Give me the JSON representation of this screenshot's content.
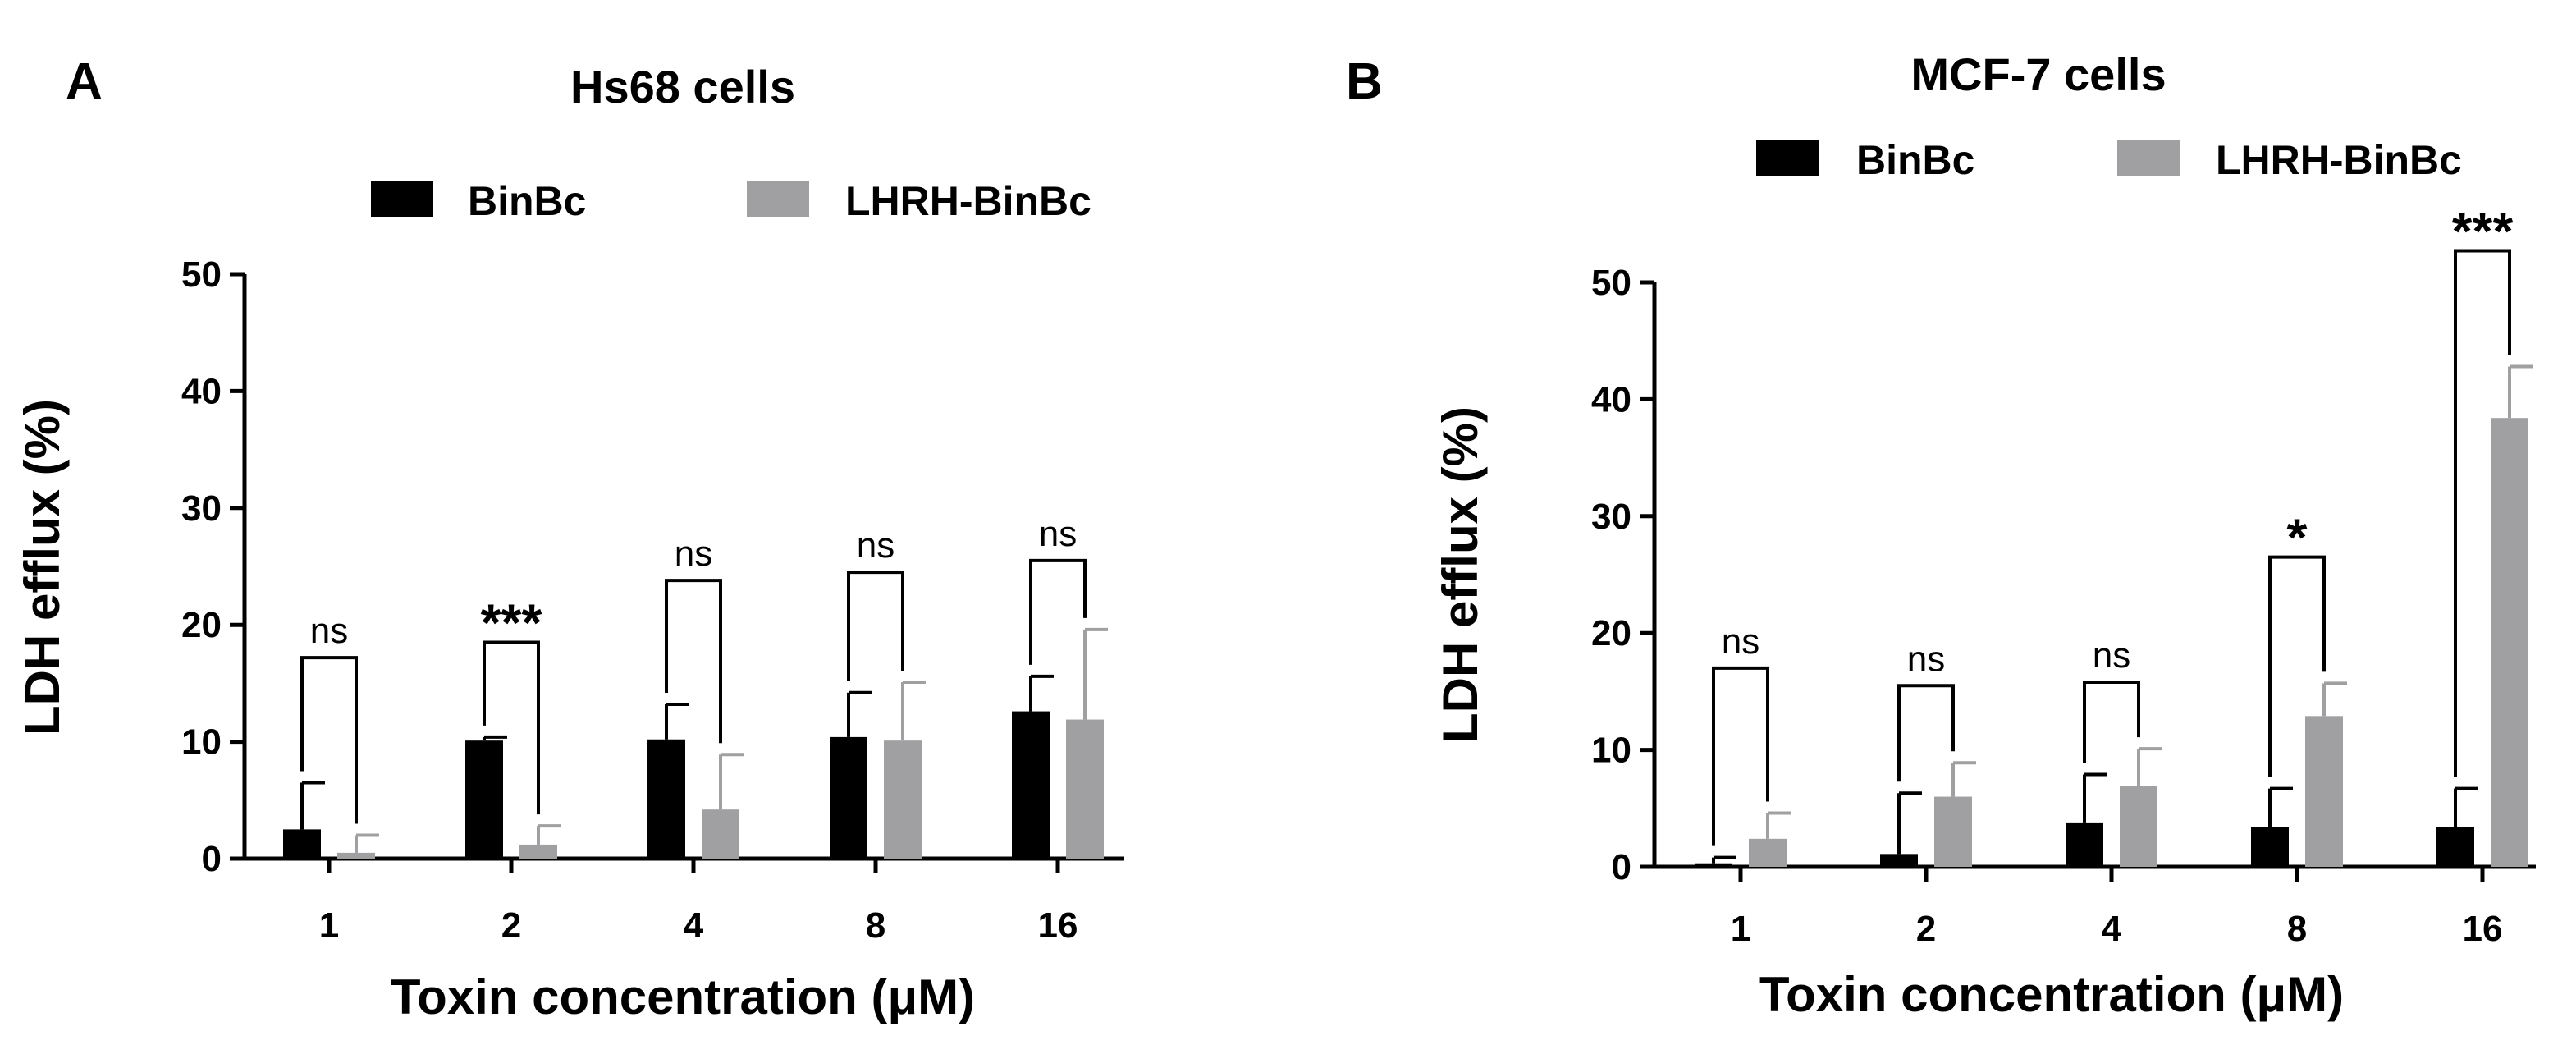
{
  "colors": {
    "binbc": "#000000",
    "lhrh": "#a0a0a2",
    "axis": "#000000",
    "background": "#ffffff"
  },
  "chart_data": [
    {
      "type": "bar",
      "panel": "A",
      "title": "Hs68 cells",
      "xlabel": "Toxin concentration (μM)",
      "ylabel": "LDH efflux (%)",
      "ylim": [
        0,
        50
      ],
      "yticks": [
        0,
        10,
        20,
        30,
        40,
        50
      ],
      "categories": [
        "1",
        "2",
        "4",
        "8",
        "16"
      ],
      "series": [
        {
          "name": "BinBc",
          "color": "#000000",
          "values": [
            2.5,
            10.1,
            10.2,
            10.4,
            12.6
          ],
          "errors": [
            4.0,
            0.3,
            3.0,
            3.8,
            3.0
          ]
        },
        {
          "name": "LHRH-BinBc",
          "color": "#a0a0a2",
          "values": [
            0.5,
            1.2,
            4.2,
            10.1,
            11.9
          ],
          "errors": [
            1.5,
            1.6,
            4.7,
            5.0,
            7.7
          ]
        }
      ],
      "significance": [
        "ns",
        "***",
        "ns",
        "ns",
        "ns"
      ],
      "bracket_heights": [
        17.2,
        18.5,
        23.8,
        24.5,
        25.5
      ],
      "legend": [
        "BinBc",
        "LHRH-BinBc"
      ],
      "legend_position": "top"
    },
    {
      "type": "bar",
      "panel": "B",
      "title": "MCF-7 cells",
      "xlabel": "Toxin concentration (μM)",
      "ylabel": "LDH efflux (%)",
      "ylim": [
        0,
        50
      ],
      "yticks": [
        0,
        10,
        20,
        30,
        40,
        50
      ],
      "categories": [
        "1",
        "2",
        "4",
        "8",
        "16"
      ],
      "series": [
        {
          "name": "BinBc",
          "color": "#000000",
          "values": [
            0.3,
            1.1,
            3.8,
            3.4,
            3.4
          ],
          "errors": [
            0.5,
            5.2,
            4.1,
            3.3,
            3.3
          ]
        },
        {
          "name": "LHRH-BinBc",
          "color": "#a0a0a2",
          "values": [
            2.4,
            6.0,
            6.9,
            12.9,
            38.4
          ],
          "errors": [
            2.2,
            2.9,
            3.2,
            2.8,
            4.4
          ]
        }
      ],
      "significance": [
        "ns",
        "ns",
        "ns",
        "*",
        "***"
      ],
      "bracket_heights": [
        17.0,
        15.5,
        15.8,
        26.5,
        52.7
      ],
      "legend": [
        "BinBc",
        "LHRH-BinBc"
      ],
      "legend_position": "top"
    }
  ]
}
